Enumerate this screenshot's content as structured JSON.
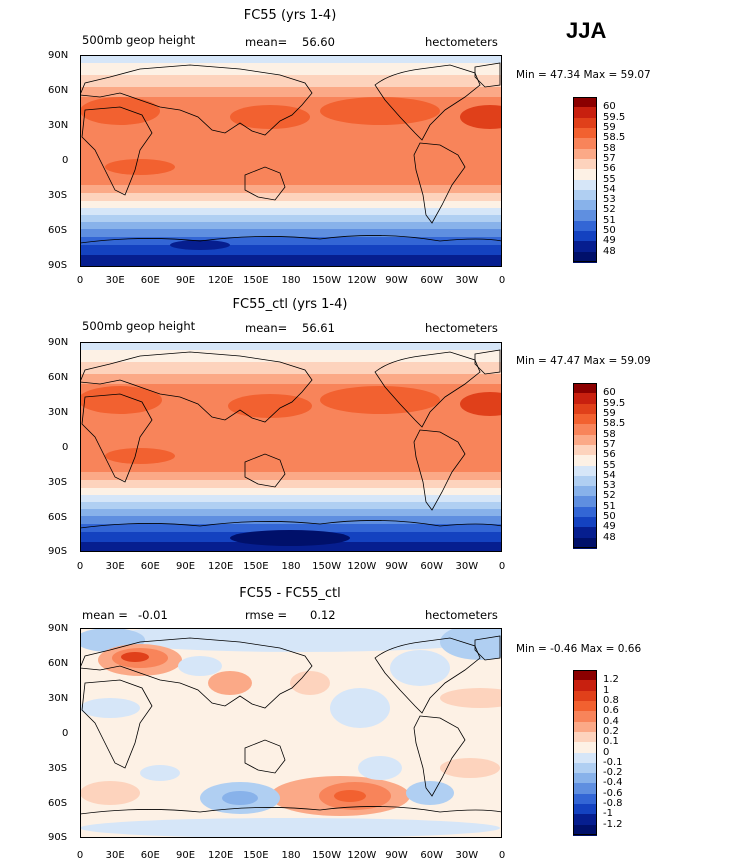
{
  "season_label": "JJA",
  "x_ticks": [
    "0",
    "30E",
    "60E",
    "90E",
    "120E",
    "150E",
    "180",
    "150W",
    "120W",
    "90W",
    "60W",
    "30W",
    "0"
  ],
  "y_ticks": [
    "90N",
    "60N",
    "30N",
    "0",
    "30S",
    "60S",
    "90S"
  ],
  "panels": [
    {
      "title": "FC55 (yrs 1-4)",
      "variable": "500mb geop height",
      "stat1_label": "",
      "stat1_value": "",
      "stat2_label": "mean=",
      "stat2_value": "56.60",
      "units": "hectometers",
      "minmax": "Min =  47.34 Max =  59.07",
      "colorbar": [
        "60",
        "59.5",
        "59",
        "58.5",
        "58",
        "57",
        "56",
        "55",
        "54",
        "53",
        "52",
        "51",
        "50",
        "49",
        "48"
      ],
      "colors": [
        "#8b0000",
        "#c8200f",
        "#e0401a",
        "#f26130",
        "#f8845a",
        "#fba987",
        "#fdd3bd",
        "#fdf1e5",
        "#d6e6f8",
        "#b0cff2",
        "#88b2ea",
        "#5f8fe0",
        "#3366d5",
        "#1442c0",
        "#061e8f",
        "#00106a"
      ]
    },
    {
      "title": "FC55_ctl (yrs 1-4)",
      "variable": "500mb geop height",
      "stat1_label": "",
      "stat1_value": "",
      "stat2_label": "mean=",
      "stat2_value": "56.61",
      "units": "hectometers",
      "minmax": "Min =  47.47 Max =  59.09",
      "colorbar": [
        "60",
        "59.5",
        "59",
        "58.5",
        "58",
        "57",
        "56",
        "55",
        "54",
        "53",
        "52",
        "51",
        "50",
        "49",
        "48"
      ],
      "colors": [
        "#8b0000",
        "#c8200f",
        "#e0401a",
        "#f26130",
        "#f8845a",
        "#fba987",
        "#fdd3bd",
        "#fdf1e5",
        "#d6e6f8",
        "#b0cff2",
        "#88b2ea",
        "#5f8fe0",
        "#3366d5",
        "#1442c0",
        "#061e8f",
        "#00106a"
      ]
    },
    {
      "title": "FC55 - FC55_ctl",
      "variable": "",
      "stat1_label": "mean =",
      "stat1_value": "-0.01",
      "stat2_label": "rmse =",
      "stat2_value": "0.12",
      "units": "hectometers",
      "minmax": "Min =  -0.46 Max =   0.66",
      "colorbar": [
        "1.2",
        "1",
        "0.8",
        "0.6",
        "0.4",
        "0.2",
        "0.1",
        "0",
        "-0.1",
        "-0.2",
        "-0.4",
        "-0.6",
        "-0.8",
        "-1",
        "-1.2"
      ],
      "colors": [
        "#8b0000",
        "#c8200f",
        "#e0401a",
        "#f26130",
        "#f8845a",
        "#fba987",
        "#fdd3bd",
        "#fdf1e5",
        "#d6e6f8",
        "#b0cff2",
        "#88b2ea",
        "#5f8fe0",
        "#3366d5",
        "#1442c0",
        "#061e8f",
        "#00106a"
      ]
    }
  ]
}
